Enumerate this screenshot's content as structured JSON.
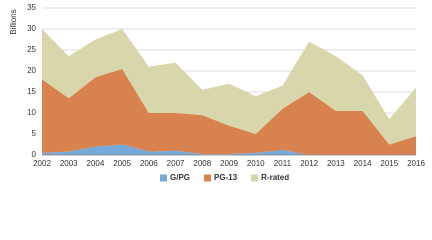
{
  "chart_data": {
    "type": "stacked-area",
    "y_label": "Billions",
    "categories": [
      "2002",
      "2003",
      "2004",
      "2005",
      "2006",
      "2007",
      "2008",
      "2009",
      "2010",
      "2011",
      "2012",
      "2013",
      "2014",
      "2015",
      "2016"
    ],
    "series": [
      {
        "name": "G/PG",
        "color": "#74a9da",
        "values": [
          0.5,
          0.8,
          2,
          2.5,
          0.8,
          1,
          0.2,
          0.2,
          0.5,
          1.2,
          0,
          0,
          0,
          0,
          0
        ]
      },
      {
        "name": "PG-13",
        "color": "#d8834f",
        "values": [
          17.5,
          12.7,
          16.5,
          18,
          9.2,
          9,
          9.3,
          6.8,
          4.5,
          9.8,
          15,
          10.5,
          10.5,
          2.5,
          4.5
        ]
      },
      {
        "name": "R-rated",
        "color": "#d7d7ab",
        "values": [
          12,
          10,
          9,
          9.5,
          11,
          12,
          6,
          10,
          9,
          5.5,
          12,
          13,
          8.5,
          6,
          11.5
        ]
      }
    ],
    "ylim": [
      0,
      35
    ],
    "yticks": [
      0,
      5,
      10,
      15,
      20,
      25,
      30,
      35
    ],
    "grid": true,
    "legend": "bottom"
  }
}
